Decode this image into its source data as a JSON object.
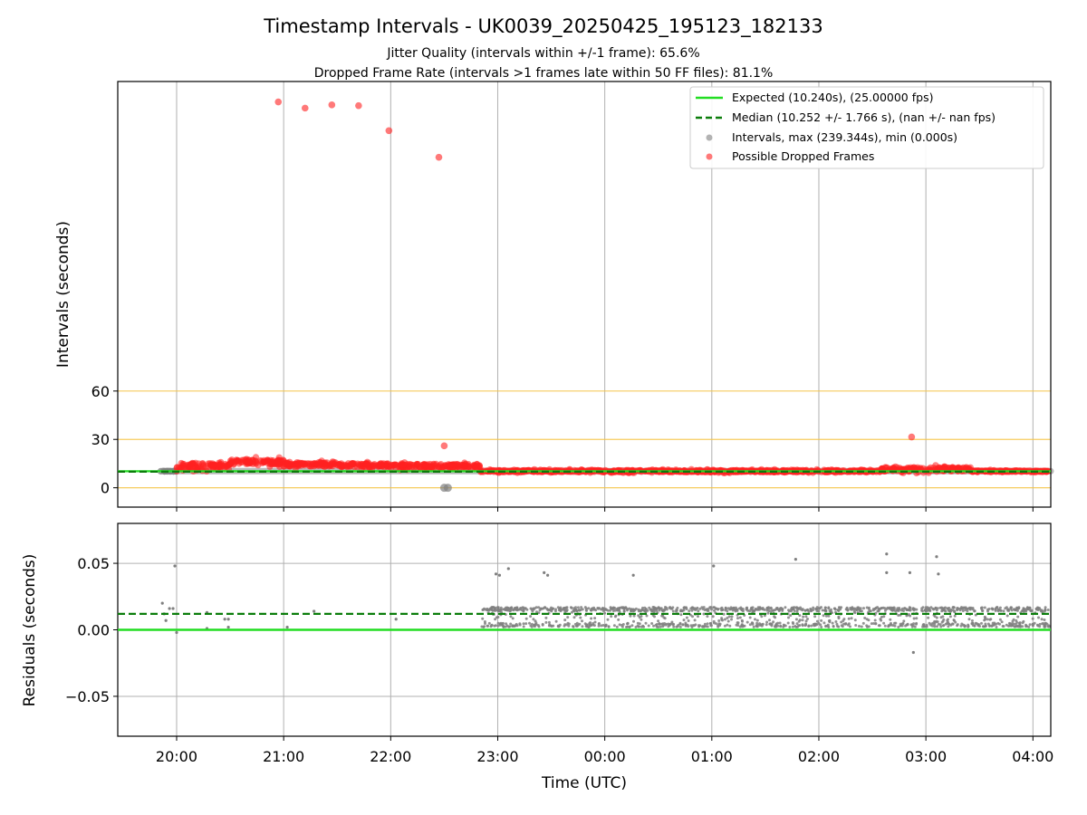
{
  "chart_data": [
    {
      "type": "scatter",
      "panel": "top",
      "title": "Timestamp Intervals - UK0039_20250425_195123_182133",
      "subtitle_lines": [
        "Jitter Quality (intervals within +/-1 frame): 65.6%",
        "Dropped Frame Rate (intervals >1 frames late within 50 FF files): 81.1%"
      ],
      "ylabel": "Intervals (seconds)",
      "y_ticks": [
        0,
        30,
        60
      ],
      "y_tick_labels": [
        "0",
        "30",
        "60"
      ],
      "ylim": [
        -12,
        252
      ],
      "reference_lines": [
        0,
        30,
        60
      ],
      "reference_line_color": "#f5c342",
      "grid": "vertical",
      "legend_position": "top-right",
      "series": [
        {
          "name": "Expected (10.240s), (25.00000 fps)",
          "style": "solid-line",
          "color": "#22dd22",
          "value": 10.24
        },
        {
          "name": "Median (10.252 +/- 1.766 s), (nan +/- nan fps)",
          "style": "dashed-line",
          "color": "#0b7d0b",
          "value": 10.252
        },
        {
          "name": "Intervals, max (239.344s), min (0.000s)",
          "style": "points",
          "color": "#808080"
        },
        {
          "name": "Possible Dropped Frames",
          "style": "points",
          "color": "#ff2020"
        }
      ],
      "outliers": [
        {
          "x": "20:57",
          "y": 239.3
        },
        {
          "x": "21:12",
          "y": 235.5
        },
        {
          "x": "21:27",
          "y": 237.5
        },
        {
          "x": "21:42",
          "y": 237.0
        },
        {
          "x": "21:59",
          "y": 221.5
        },
        {
          "x": "22:27",
          "y": 205.0
        },
        {
          "x": "22:30",
          "y": 26.0
        },
        {
          "x": "02:52",
          "y": 31.5
        }
      ],
      "segments": [
        {
          "x_start": "19:51",
          "x_end": "20:00",
          "y": 10.3,
          "spread": 0.5,
          "kind": "normal"
        },
        {
          "x_start": "20:00",
          "x_end": "20:30",
          "y": 13.5,
          "spread": 4,
          "kind": "dropped"
        },
        {
          "x_start": "20:30",
          "x_end": "21:00",
          "y": 16.0,
          "spread": 3,
          "kind": "dropped"
        },
        {
          "x_start": "21:00",
          "x_end": "21:30",
          "y": 14.5,
          "spread": 2.5,
          "kind": "dropped"
        },
        {
          "x_start": "21:30",
          "x_end": "22:00",
          "y": 14.0,
          "spread": 2.5,
          "kind": "dropped"
        },
        {
          "x_start": "22:00",
          "x_end": "22:50",
          "y": 13.5,
          "spread": 2.5,
          "kind": "dropped"
        },
        {
          "x_start": "22:50",
          "x_end": "02:35",
          "y": 10.3,
          "spread": 1.2,
          "kind": "dropped"
        },
        {
          "x_start": "02:35",
          "x_end": "03:25",
          "y": 11.5,
          "spread": 2.5,
          "kind": "dropped"
        },
        {
          "x_start": "03:25",
          "x_end": "04:10",
          "y": 10.3,
          "spread": 0.8,
          "kind": "dropped"
        }
      ],
      "zero_points": [
        {
          "x": "22:30",
          "y": 0.0
        }
      ]
    },
    {
      "type": "scatter",
      "panel": "bottom",
      "xlabel": "Time (UTC)",
      "ylabel": "Residuals (seconds)",
      "x_ticks": [
        "20:00",
        "21:00",
        "22:00",
        "23:00",
        "00:00",
        "01:00",
        "02:00",
        "03:00",
        "04:00"
      ],
      "xlim": [
        "19:27",
        "04:10"
      ],
      "y_ticks": [
        -0.05,
        0.0,
        0.05
      ],
      "y_tick_labels": [
        "−0.05",
        "0.00",
        "0.05"
      ],
      "ylim": [
        -0.08,
        0.08
      ],
      "grid": "both",
      "expected_line": {
        "value": 0.0,
        "color": "#22dd22"
      },
      "median_line": {
        "value": 0.012,
        "color": "#0b7d0b"
      },
      "point_color": "#808080",
      "isolated_points": [
        {
          "x": "19:52",
          "y": 0.02
        },
        {
          "x": "19:53",
          "y": 0.012
        },
        {
          "x": "19:54",
          "y": 0.007
        },
        {
          "x": "19:56",
          "y": 0.016
        },
        {
          "x": "19:58",
          "y": 0.016
        },
        {
          "x": "19:59",
          "y": 0.048
        },
        {
          "x": "20:00",
          "y": -0.002
        },
        {
          "x": "20:17",
          "y": 0.013
        },
        {
          "x": "20:17",
          "y": 0.001
        },
        {
          "x": "20:27",
          "y": 0.008
        },
        {
          "x": "20:29",
          "y": 0.008
        },
        {
          "x": "20:29",
          "y": 0.002
        },
        {
          "x": "21:02",
          "y": 0.002
        },
        {
          "x": "21:17",
          "y": 0.014
        },
        {
          "x": "22:03",
          "y": 0.008
        },
        {
          "x": "22:59",
          "y": 0.042
        },
        {
          "x": "23:01",
          "y": 0.041
        },
        {
          "x": "23:06",
          "y": 0.046
        },
        {
          "x": "23:26",
          "y": 0.043
        },
        {
          "x": "23:28",
          "y": 0.041
        },
        {
          "x": "00:16",
          "y": 0.041
        },
        {
          "x": "01:01",
          "y": 0.048
        },
        {
          "x": "01:47",
          "y": 0.053
        },
        {
          "x": "02:38",
          "y": 0.057
        },
        {
          "x": "02:38",
          "y": 0.043
        },
        {
          "x": "02:51",
          "y": 0.043
        },
        {
          "x": "02:53",
          "y": -0.017
        },
        {
          "x": "03:06",
          "y": 0.055
        },
        {
          "x": "03:07",
          "y": 0.042
        }
      ],
      "dense_band": {
        "x_start": "22:51",
        "x_end": "04:10",
        "y_min": 0.002,
        "y_max": 0.017
      }
    }
  ]
}
